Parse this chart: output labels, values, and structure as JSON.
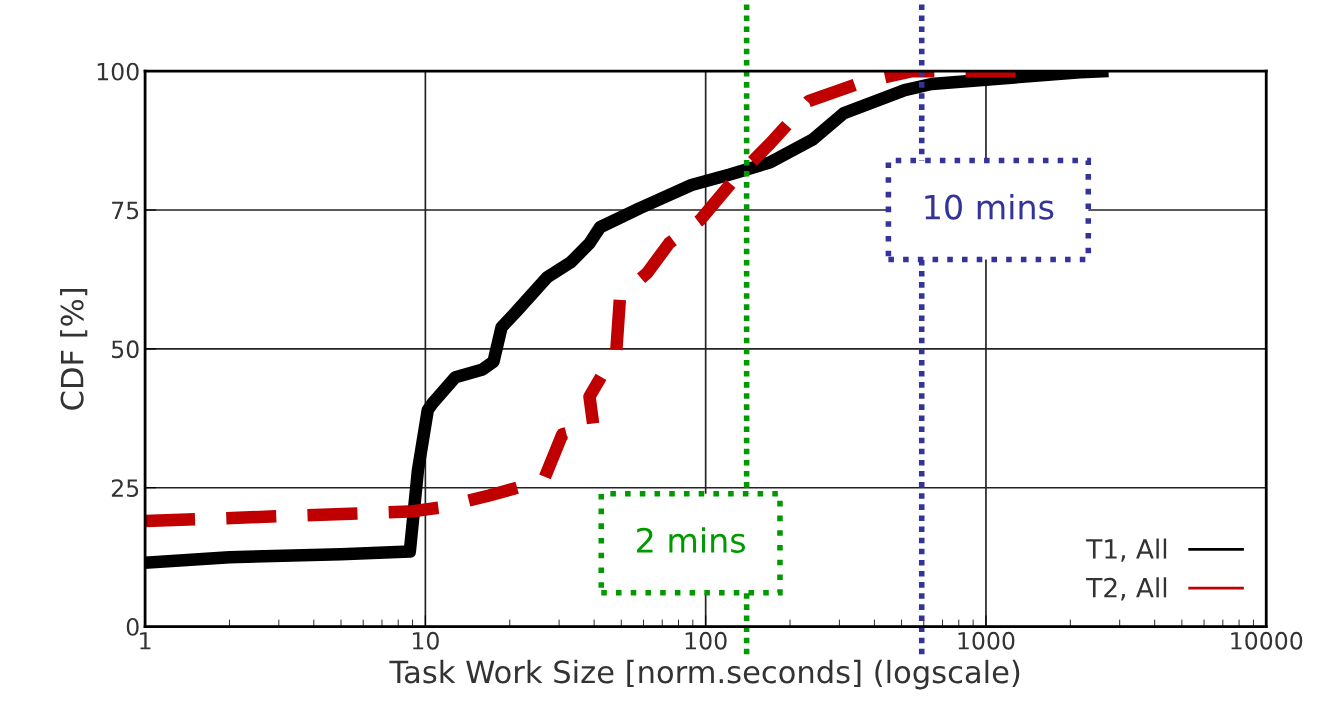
{
  "chart_data": {
    "type": "line",
    "xlabel": "Task Work Size [norm.seconds] (logscale)",
    "ylabel": "CDF [%]",
    "log": "x",
    "xlim": [
      1,
      10000
    ],
    "xticks": [
      1,
      10,
      100,
      1000,
      10000
    ],
    "ylim": [
      0,
      100
    ],
    "yticks": [
      0,
      25,
      50,
      75,
      100
    ],
    "grid": true,
    "legend": "bottom right",
    "series": [
      {
        "name": "T1, All",
        "color": "#000000",
        "line_style": "solid",
        "x": [
          1,
          2,
          5,
          8.8,
          9.4,
          10.2,
          10.6,
          12.8,
          16,
          17.5,
          18.7,
          21,
          27.2,
          33,
          38.5,
          42,
          58,
          89,
          122,
          170,
          241,
          310,
          513,
          640,
          2170,
          2600
        ],
        "values": [
          11.5,
          12.5,
          13,
          13.5,
          28,
          39,
          40.2,
          44.9,
          46.3,
          47.7,
          53.9,
          56.6,
          62.9,
          65.6,
          69,
          71.9,
          75.3,
          79.5,
          81.4,
          83.6,
          87.7,
          92.4,
          96.6,
          97.7,
          99.8,
          100
        ]
      },
      {
        "name": "T2, All",
        "color": "#c00000",
        "line_style": "dashed",
        "x": [
          1,
          8.8,
          11.2,
          16.9,
          26.4,
          30.8,
          39.8,
          38.5,
          48,
          49.5,
          61.7,
          74,
          95.6,
          125,
          170,
          233,
          362,
          545,
          1620
        ],
        "values": [
          19,
          20.7,
          21.4,
          23.6,
          26.3,
          34.6,
          36,
          41.4,
          49.7,
          59.5,
          63.6,
          69,
          73.2,
          80.2,
          87,
          94.6,
          98,
          100,
          100
        ]
      }
    ],
    "ref_lines": [
      {
        "axis": "x",
        "value": 140,
        "label": "2 mins",
        "color": "#009900",
        "line_style": "dotted"
      },
      {
        "axis": "x",
        "value": 590,
        "label": "10 mins",
        "color": "#333399",
        "line_style": "dotted"
      }
    ]
  }
}
